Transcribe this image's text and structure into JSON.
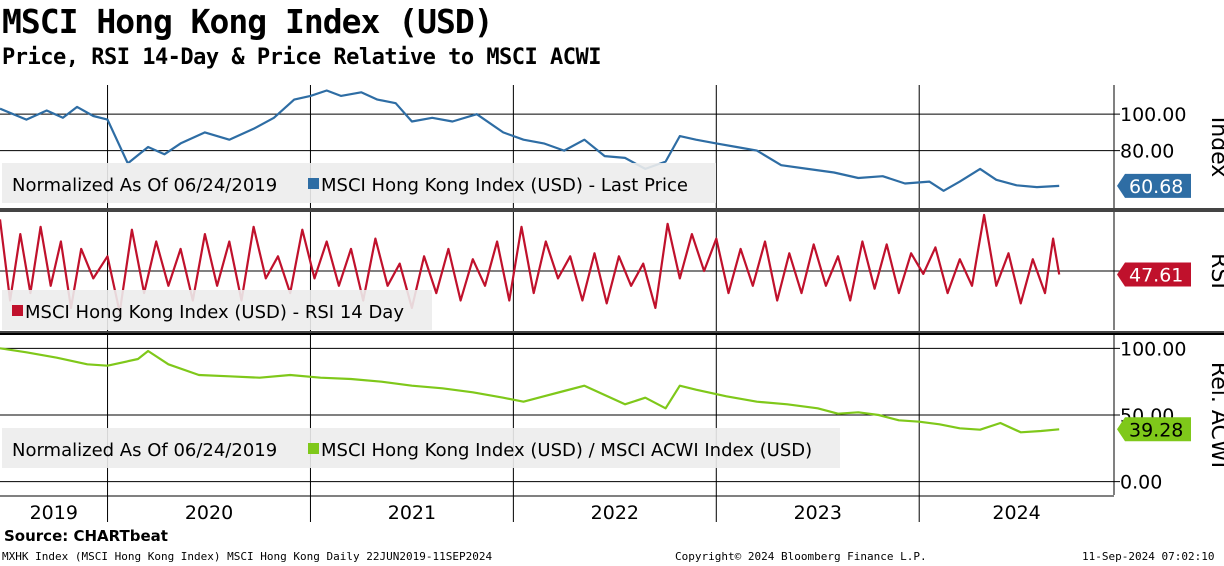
{
  "header": {
    "title": "MSCI Hong Kong Index (USD)",
    "subtitle": "Price, RSI 14-Day & Price Relative to MSCI ACWI"
  },
  "colors": {
    "price": "#2e6da4",
    "rsi": "#c0112c",
    "relative": "#7fc81a",
    "grid": "#000000",
    "legend_bg": "#ececec"
  },
  "chart_data": [
    {
      "type": "line",
      "panel": "price",
      "axis_label": "Index",
      "ylim": [
        48,
        116
      ],
      "ticks": [
        {
          "value": 100,
          "label": "100.00"
        },
        {
          "value": 80,
          "label": "80.00"
        }
      ],
      "legend_prefix": "Normalized As Of 06/24/2019",
      "legend_series": "MSCI Hong Kong Index (USD) - Last Price",
      "last_value": 60.68,
      "last_label": "60.68",
      "x": [
        2019.47,
        2019.6,
        2019.7,
        2019.78,
        2019.85,
        2019.93,
        2020.0,
        2020.1,
        2020.2,
        2020.28,
        2020.36,
        2020.48,
        2020.6,
        2020.72,
        2020.82,
        2020.92,
        2021.0,
        2021.08,
        2021.15,
        2021.25,
        2021.33,
        2021.42,
        2021.5,
        2021.6,
        2021.7,
        2021.82,
        2021.95,
        2022.05,
        2022.15,
        2022.25,
        2022.35,
        2022.45,
        2022.55,
        2022.65,
        2022.75,
        2022.82,
        2022.9,
        2023.0,
        2023.1,
        2023.2,
        2023.32,
        2023.45,
        2023.58,
        2023.7,
        2023.82,
        2023.93,
        2024.05,
        2024.12,
        2024.2,
        2024.3,
        2024.38,
        2024.48,
        2024.58,
        2024.69
      ],
      "values": [
        103,
        97,
        102,
        98,
        104,
        99,
        97,
        73,
        82,
        78,
        84,
        90,
        86,
        92,
        98,
        108,
        110,
        113,
        110,
        112,
        108,
        106,
        96,
        98,
        96,
        100,
        90,
        86,
        84,
        80,
        86,
        77,
        76,
        70,
        74,
        88,
        86,
        84,
        82,
        80,
        72,
        70,
        68,
        65,
        66,
        62,
        63,
        58,
        63,
        70,
        64,
        61,
        60,
        60.68
      ]
    },
    {
      "type": "line",
      "panel": "rsi",
      "axis_label": "RSI",
      "ylim": [
        10,
        90
      ],
      "legend_series": "MSCI Hong Kong Index (USD) - RSI 14 Day",
      "last_value": 47.61,
      "last_label": "47.61",
      "x": [
        2019.47,
        2019.52,
        2019.57,
        2019.62,
        2019.67,
        2019.72,
        2019.77,
        2019.82,
        2019.87,
        2019.93,
        2020.0,
        2020.06,
        2020.12,
        2020.18,
        2020.24,
        2020.3,
        2020.36,
        2020.42,
        2020.48,
        2020.54,
        2020.6,
        2020.66,
        2020.72,
        2020.78,
        2020.84,
        2020.9,
        2020.96,
        2021.02,
        2021.08,
        2021.14,
        2021.2,
        2021.26,
        2021.32,
        2021.38,
        2021.44,
        2021.5,
        2021.56,
        2021.62,
        2021.68,
        2021.74,
        2021.8,
        2021.86,
        2021.92,
        2021.98,
        2022.04,
        2022.1,
        2022.16,
        2022.22,
        2022.28,
        2022.34,
        2022.4,
        2022.46,
        2022.52,
        2022.58,
        2022.64,
        2022.7,
        2022.76,
        2022.82,
        2022.88,
        2022.94,
        2023.0,
        2023.06,
        2023.12,
        2023.18,
        2023.24,
        2023.3,
        2023.36,
        2023.42,
        2023.48,
        2023.54,
        2023.6,
        2023.66,
        2023.72,
        2023.78,
        2023.84,
        2023.9,
        2023.96,
        2024.02,
        2024.08,
        2024.14,
        2024.2,
        2024.26,
        2024.32,
        2024.38,
        2024.44,
        2024.5,
        2024.56,
        2024.62,
        2024.66,
        2024.69
      ],
      "values": [
        85,
        30,
        75,
        35,
        80,
        40,
        70,
        25,
        65,
        45,
        60,
        22,
        78,
        35,
        70,
        40,
        65,
        30,
        75,
        40,
        70,
        30,
        80,
        45,
        60,
        35,
        78,
        45,
        70,
        40,
        65,
        30,
        72,
        40,
        55,
        25,
        60,
        35,
        65,
        30,
        58,
        40,
        70,
        30,
        80,
        35,
        70,
        45,
        60,
        30,
        62,
        28,
        60,
        40,
        55,
        25,
        82,
        45,
        75,
        50,
        72,
        35,
        65,
        40,
        70,
        30,
        62,
        35,
        68,
        40,
        60,
        30,
        70,
        38,
        68,
        35,
        62,
        48,
        66,
        35,
        58,
        40,
        88,
        40,
        62,
        28,
        58,
        35,
        72,
        47.61
      ]
    },
    {
      "type": "line",
      "panel": "relative",
      "axis_label": "Rel. ACWI",
      "ylim": [
        -10,
        110
      ],
      "ticks": [
        {
          "value": 100,
          "label": "100.00"
        },
        {
          "value": 50,
          "label": "50.00"
        },
        {
          "value": 0,
          "label": "0.00"
        }
      ],
      "legend_prefix": "Normalized As Of 06/24/2019",
      "legend_series": "MSCI Hong Kong Index (USD) / MSCI ACWI Index (USD)",
      "last_value": 39.28,
      "last_label": "39.28",
      "x": [
        2019.47,
        2019.6,
        2019.75,
        2019.9,
        2020.0,
        2020.15,
        2020.2,
        2020.3,
        2020.45,
        2020.6,
        2020.75,
        2020.9,
        2021.05,
        2021.2,
        2021.35,
        2021.5,
        2021.65,
        2021.8,
        2021.95,
        2022.05,
        2022.15,
        2022.25,
        2022.35,
        2022.45,
        2022.55,
        2022.65,
        2022.75,
        2022.82,
        2022.9,
        2023.05,
        2023.2,
        2023.35,
        2023.5,
        2023.6,
        2023.7,
        2023.8,
        2023.9,
        2024.0,
        2024.1,
        2024.2,
        2024.3,
        2024.4,
        2024.5,
        2024.6,
        2024.69
      ],
      "values": [
        100,
        97,
        93,
        88,
        87,
        92,
        98,
        88,
        80,
        79,
        78,
        80,
        78,
        77,
        75,
        72,
        70,
        67,
        63,
        60,
        64,
        68,
        72,
        65,
        58,
        63,
        55,
        72,
        69,
        64,
        60,
        58,
        55,
        51,
        52,
        50,
        46,
        45,
        43,
        40,
        39,
        44,
        37,
        38,
        39.28
      ]
    }
  ],
  "x_axis": {
    "range": [
      2019.47,
      2024.96
    ],
    "year_labels": [
      "2019",
      "2020",
      "2021",
      "2022",
      "2023",
      "2024"
    ],
    "year_starts": [
      2020,
      2021,
      2022,
      2023,
      2024
    ]
  },
  "footer": {
    "source": "Source: CHARTbeat",
    "left": "MXHK Index (MSCI Hong Kong Index) MSCI Hong Kong  Daily 22JUN2019-11SEP2024",
    "center": "Copyright© 2024 Bloomberg Finance L.P.",
    "right": "11-Sep-2024 07:02:10"
  }
}
